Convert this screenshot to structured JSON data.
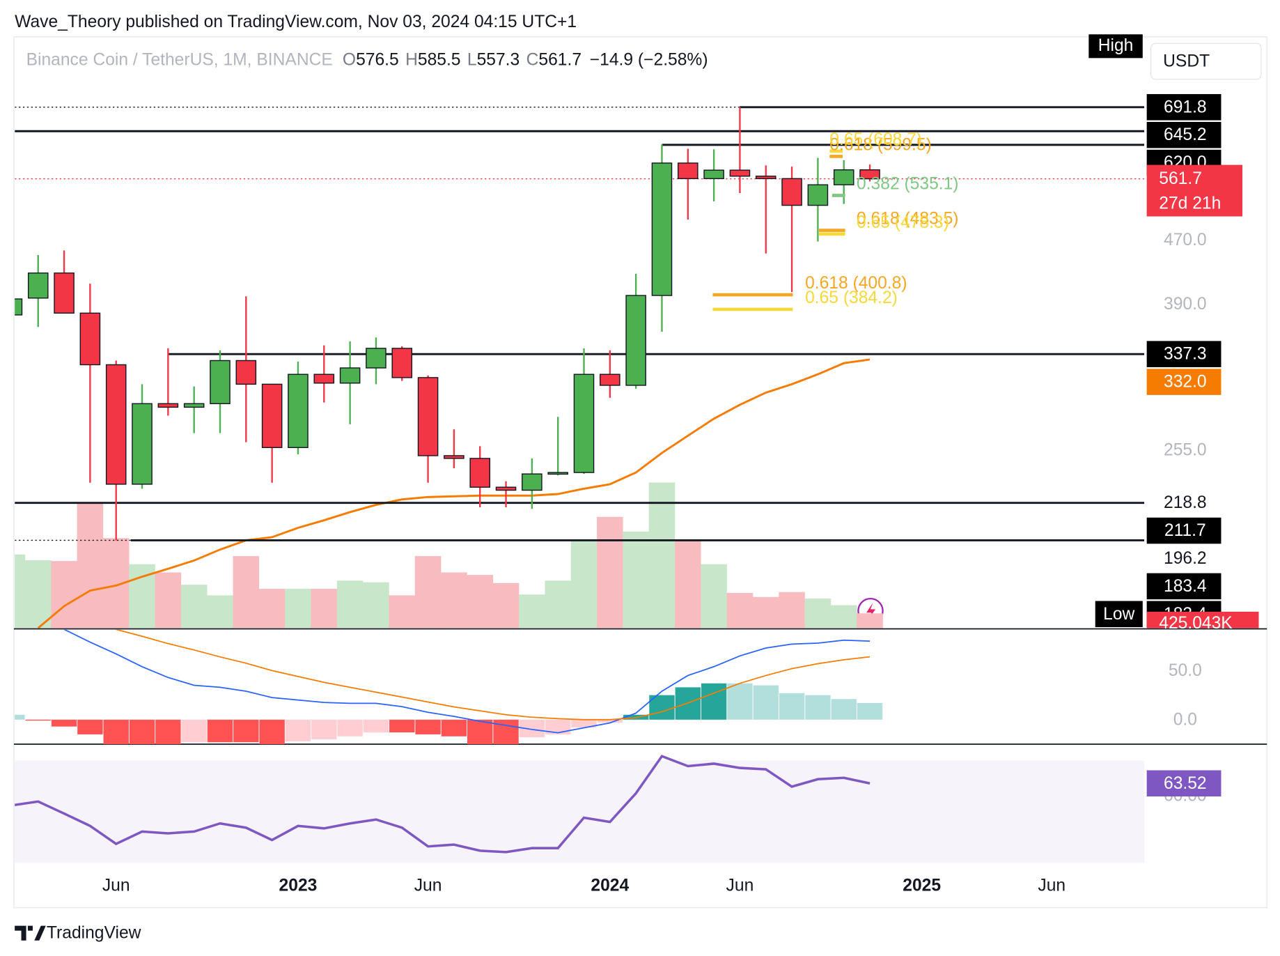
{
  "chart_data": {
    "type": "candlestick",
    "subtitle": "Wave_Theory published on TradingView.com, Nov 03, 2024 04:15 UTC+1",
    "title": "Binance Coin / TetherUS, 1M, BINANCE",
    "ohlc_labels": [
      "O",
      "H",
      "L",
      "C"
    ],
    "change_label": "−14.9 (−2.58%)",
    "currency": "USDT",
    "countdown": "27d 21h",
    "footer": "TradingView",
    "up_color": "#4caf50",
    "down_color": "#f23645",
    "log_scale": true,
    "ylim": [
      152,
      849
    ],
    "xlim": [
      0.1,
      43.56
    ],
    "xticks": [
      {
        "value": 4,
        "label": "Jun"
      },
      {
        "value": 11,
        "label": "2023"
      },
      {
        "value": 16,
        "label": "Jun"
      },
      {
        "value": 23,
        "label": "2024"
      },
      {
        "value": 28,
        "label": "Jun"
      },
      {
        "value": 35,
        "label": "2025"
      },
      {
        "value": 40,
        "label": "Jun"
      }
    ],
    "yticks": [
      {
        "value": 470,
        "label": "470.0"
      },
      {
        "value": 390,
        "label": "390.0"
      },
      {
        "value": 255,
        "label": "255.0"
      }
    ],
    "open": [
      378,
      397,
      427,
      380,
      327,
      231,
      292,
      289,
      292,
      331,
      309,
      257,
      318,
      310,
      324,
      343,
      315,
      251,
      249,
      229,
      227,
      238,
      239,
      318,
      308,
      400,
      588,
      562,
      576,
      566,
      562,
      520,
      552,
      576.5
    ],
    "high": [
      400,
      450,
      456,
      414,
      331,
      309,
      343,
      307,
      341,
      399,
      309,
      330,
      346,
      350,
      354,
      345,
      317,
      271,
      258,
      233,
      249,
      281,
      343,
      341,
      426,
      621,
      613,
      612,
      691.8,
      584,
      582,
      597,
      593,
      585.5
    ],
    "low": [
      375,
      365,
      380,
      232,
      196.2,
      228,
      282,
      268,
      268,
      261,
      232,
      252,
      293,
      275,
      309,
      312,
      232,
      242,
      216,
      216,
      215,
      237,
      238,
      297,
      305,
      360,
      499,
      526,
      539,
      452,
      404,
      468,
      522,
      557.3
    ],
    "close": [
      396,
      427,
      380,
      327,
      231,
      292,
      289,
      292,
      331,
      309,
      257,
      318,
      310,
      324,
      343,
      315,
      251,
      249,
      229,
      227,
      238,
      239,
      318,
      308,
      400,
      588,
      562,
      576,
      566,
      562,
      520,
      552,
      576.5,
      561.7
    ],
    "levels": [
      {
        "value": 691.8,
        "label": "691.8",
        "boxed": true,
        "line": true
      },
      {
        "value": 645.2,
        "label": "645.2",
        "boxed": true,
        "line": true
      },
      {
        "value": 620,
        "label": "620.0",
        "boxed": true,
        "line": true
      },
      {
        "value": 337.3,
        "label": "337.3",
        "boxed": true,
        "line": true
      },
      {
        "value": 218.8,
        "label": "218.8",
        "boxed": false,
        "line": true
      },
      {
        "value": 211.7,
        "label": "211.7",
        "boxed": true,
        "line": false
      },
      {
        "value": 196.2,
        "label": "196.2",
        "boxed": false,
        "line": true
      },
      {
        "value": 183.4,
        "label": "183.4",
        "boxed": true,
        "line": false
      }
    ],
    "high_low": {
      "high_label": "High",
      "low_label": "Low",
      "low": 183.4,
      "low_value_label": "183.4"
    },
    "fibs": [
      {
        "text": "0.618 (599.5)",
        "value": 599.5,
        "color": "#f5a623"
      },
      {
        "text": "0.65 (608.7)",
        "value": 608.7,
        "color": "#f6d83b"
      },
      {
        "text": "0.382 (535.1)",
        "value": 535.1,
        "color": "#81c784"
      },
      {
        "text": "0.618 (483.5)",
        "value": 483.5,
        "color": "#f5a623"
      },
      {
        "text": "0.65 (478.3)",
        "value": 478.3,
        "color": "#f6d83b"
      },
      {
        "text": "0.618 (400.8)",
        "value": 400.8,
        "color": "#f5a623"
      },
      {
        "text": "0.65 (384.2)",
        "value": 384.2,
        "color": "#f6d83b"
      }
    ],
    "ma": {
      "color": "#f57c00",
      "values": [
        null,
        152,
        162,
        169.5,
        172,
        176.5,
        180.6,
        185,
        191,
        196.2,
        198,
        203.5,
        208,
        213,
        217.5,
        221,
        222.5,
        223,
        223.5,
        223.5,
        223.5,
        224.5,
        228,
        231,
        239,
        253,
        266,
        279.5,
        291,
        301.5,
        309,
        318,
        328.5,
        332
      ],
      "value_labels": [
        null,
        null,
        null,
        null,
        null,
        null,
        null,
        null,
        null,
        null,
        null,
        null,
        null,
        null,
        null,
        null,
        null,
        null,
        null,
        null,
        null,
        null,
        null,
        null,
        null,
        null,
        null,
        null,
        null,
        null,
        null,
        null,
        null,
        "332.0"
      ]
    },
    "volume": {
      "up_color": "#c8e6c9",
      "down_color": "#f8bcc0",
      "ylim": [
        0,
        17070000
      ],
      "values": [
        2125000,
        1960000,
        1936000,
        3613000,
        2597000,
        1842000,
        1606000,
        1251000,
        945000,
        2078000,
        1133000,
        1133000,
        1133000,
        1370000,
        1322000,
        945000,
        2078000,
        1606000,
        1535000,
        1299000,
        968000,
        1370000,
        2550000,
        3211000,
        2786000,
        4203000,
        2550000,
        1842000,
        1015000,
        897000,
        1039000,
        850000,
        661000,
        425043
      ],
      "value_labels": [
        null,
        null,
        null,
        null,
        null,
        null,
        null,
        null,
        null,
        null,
        null,
        null,
        null,
        null,
        null,
        null,
        null,
        null,
        null,
        null,
        null,
        null,
        null,
        null,
        null,
        null,
        null,
        null,
        null,
        null,
        null,
        null,
        null,
        "425.043K"
      ]
    },
    "macd": {
      "ylim": [
        -25,
        91.7
      ],
      "yticks": [
        {
          "value": 50,
          "label": "50.0"
        },
        {
          "value": 0,
          "label": "0.0"
        }
      ],
      "hist_colors": [
        "#26a69a",
        "#b2dfdb",
        "#ff5252",
        "#ffcdd2"
      ],
      "hist": [
        5,
        -1,
        -7,
        -15,
        -25,
        -25,
        -25,
        -23,
        -23,
        -23,
        -25,
        -22,
        -20,
        -17,
        -13,
        -13,
        -15,
        -17,
        -25,
        -25,
        -18,
        -15,
        -8,
        -3,
        5,
        25,
        33,
        37,
        37,
        35,
        27,
        25,
        21,
        17
      ],
      "macd": {
        "color": "#2962ff",
        "values": [
          null,
          null,
          92,
          79,
          67,
          54,
          43,
          35,
          33,
          29,
          22.5,
          20,
          17.5,
          16.7,
          16.7,
          13.3,
          7.5,
          3.3,
          -1.7,
          -5.8,
          -10,
          -13.3,
          -8.3,
          -3.3,
          6.7,
          29,
          45,
          54,
          65,
          73,
          77,
          78,
          81,
          80
        ]
      },
      "signal": {
        "color": "#f57c00",
        "values": [
          null,
          null,
          null,
          null,
          92,
          85,
          77.5,
          71,
          64,
          57.5,
          50,
          44,
          38,
          33,
          28,
          23,
          18,
          13,
          9,
          5,
          2.5,
          1,
          0,
          0,
          2,
          8,
          17,
          27,
          37,
          45,
          52,
          57,
          61,
          64
        ]
      }
    },
    "rsi": {
      "color": "#7e57c2",
      "ylim": [
        37.6,
        74.6
      ],
      "yticks": [
        {
          "value": 60,
          "label": "60.00"
        }
      ],
      "values": [
        57.3,
        58.4,
        55,
        51.5,
        46.4,
        49.9,
        49.4,
        49.9,
        52.2,
        51,
        47.5,
        51.5,
        50.8,
        52.2,
        53.3,
        51,
        45.7,
        46.2,
        44.5,
        44.1,
        45.2,
        45.2,
        53.8,
        52.6,
        60.7,
        71.2,
        68.4,
        69.1,
        67.9,
        67.5,
        62.6,
        64.7,
        65.1,
        63.52
      ]
    }
  }
}
